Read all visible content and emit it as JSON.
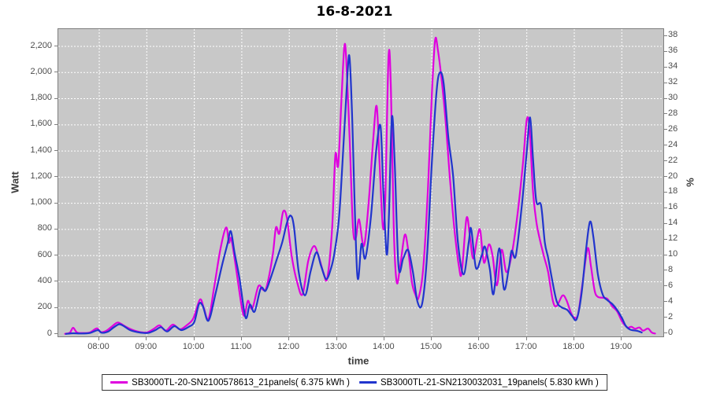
{
  "chart_data": {
    "type": "line",
    "title": "16-8-2021",
    "background": "#ffffff",
    "plot_background": "#c8c8c8",
    "grid": true,
    "grid_color": "#ffffff",
    "legend_position": "bottom",
    "x_axis": {
      "label": "time",
      "range_hours": [
        7.14,
        19.91
      ],
      "tick_values": [
        8,
        9,
        10,
        11,
        12,
        13,
        14,
        15,
        16,
        17,
        18,
        19
      ],
      "tick_labels": [
        "08:00",
        "09:00",
        "10:00",
        "11:00",
        "12:00",
        "13:00",
        "14:00",
        "15:00",
        "16:00",
        "17:00",
        "18:00",
        "19:00"
      ]
    },
    "y_axis_left": {
      "label": "Watt",
      "min": 0,
      "max": 2200,
      "step": 200,
      "tick_labels": [
        "0",
        "200",
        "400",
        "600",
        "800",
        "1,000",
        "1,200",
        "1,400",
        "1,600",
        "1,800",
        "2,000",
        "2,200"
      ]
    },
    "y_axis_right": {
      "label": "%",
      "min": 0,
      "max": 38,
      "step": 2
    },
    "series": [
      {
        "name": "SB3000TL-20-SN2100578613_21panels( 6.375 kWh )",
        "color": "#df00df",
        "points_hour_watt": [
          [
            7.28,
            2
          ],
          [
            7.38,
            10
          ],
          [
            7.45,
            48
          ],
          [
            7.53,
            12
          ],
          [
            7.65,
            8
          ],
          [
            7.8,
            12
          ],
          [
            7.95,
            44
          ],
          [
            8.03,
            15
          ],
          [
            8.15,
            25
          ],
          [
            8.28,
            62
          ],
          [
            8.38,
            88
          ],
          [
            8.46,
            78
          ],
          [
            8.55,
            58
          ],
          [
            8.68,
            34
          ],
          [
            8.8,
            20
          ],
          [
            8.92,
            12
          ],
          [
            9.02,
            14
          ],
          [
            9.15,
            40
          ],
          [
            9.27,
            66
          ],
          [
            9.4,
            26
          ],
          [
            9.55,
            72
          ],
          [
            9.7,
            36
          ],
          [
            9.85,
            70
          ],
          [
            9.98,
            120
          ],
          [
            10.12,
            264
          ],
          [
            10.2,
            200
          ],
          [
            10.3,
            115
          ],
          [
            10.42,
            360
          ],
          [
            10.55,
            650
          ],
          [
            10.67,
            815
          ],
          [
            10.73,
            700
          ],
          [
            10.78,
            728
          ],
          [
            10.88,
            500
          ],
          [
            11.0,
            205
          ],
          [
            11.06,
            142
          ],
          [
            11.13,
            254
          ],
          [
            11.22,
            195
          ],
          [
            11.35,
            366
          ],
          [
            11.45,
            338
          ],
          [
            11.52,
            358
          ],
          [
            11.65,
            600
          ],
          [
            11.72,
            815
          ],
          [
            11.79,
            768
          ],
          [
            11.87,
            936
          ],
          [
            11.95,
            888
          ],
          [
            12.05,
            600
          ],
          [
            12.17,
            390
          ],
          [
            12.28,
            305
          ],
          [
            12.4,
            560
          ],
          [
            12.52,
            673
          ],
          [
            12.62,
            592
          ],
          [
            12.72,
            470
          ],
          [
            12.8,
            428
          ],
          [
            12.9,
            800
          ],
          [
            12.97,
            1370
          ],
          [
            13.03,
            1290
          ],
          [
            13.1,
            1800
          ],
          [
            13.16,
            2200
          ],
          [
            13.2,
            2090
          ],
          [
            13.27,
            1500
          ],
          [
            13.34,
            820
          ],
          [
            13.4,
            733
          ],
          [
            13.47,
            877
          ],
          [
            13.57,
            673
          ],
          [
            13.67,
            1000
          ],
          [
            13.77,
            1500
          ],
          [
            13.84,
            1742
          ],
          [
            13.9,
            1310
          ],
          [
            13.97,
            820
          ],
          [
            14.02,
            1020
          ],
          [
            14.09,
            2120
          ],
          [
            14.14,
            1880
          ],
          [
            14.2,
            800
          ],
          [
            14.26,
            400
          ],
          [
            14.33,
            505
          ],
          [
            14.43,
            757
          ],
          [
            14.5,
            650
          ],
          [
            14.58,
            400
          ],
          [
            14.65,
            306
          ],
          [
            14.72,
            276
          ],
          [
            14.82,
            500
          ],
          [
            14.92,
            1120
          ],
          [
            15.0,
            1820
          ],
          [
            15.07,
            2246
          ],
          [
            15.13,
            2170
          ],
          [
            15.22,
            1900
          ],
          [
            15.3,
            1590
          ],
          [
            15.38,
            1200
          ],
          [
            15.48,
            790
          ],
          [
            15.57,
            520
          ],
          [
            15.63,
            470
          ],
          [
            15.73,
            884
          ],
          [
            15.8,
            760
          ],
          [
            15.87,
            577
          ],
          [
            15.96,
            740
          ],
          [
            16.02,
            793
          ],
          [
            16.1,
            546
          ],
          [
            16.2,
            685
          ],
          [
            16.28,
            598
          ],
          [
            16.37,
            372
          ],
          [
            16.47,
            643
          ],
          [
            16.57,
            474
          ],
          [
            16.68,
            602
          ],
          [
            16.8,
            900
          ],
          [
            16.92,
            1310
          ],
          [
            17.0,
            1641
          ],
          [
            17.06,
            1560
          ],
          [
            17.13,
            1100
          ],
          [
            17.2,
            860
          ],
          [
            17.28,
            715
          ],
          [
            17.37,
            583
          ],
          [
            17.45,
            474
          ],
          [
            17.55,
            252
          ],
          [
            17.63,
            215
          ],
          [
            17.75,
            294
          ],
          [
            17.83,
            264
          ],
          [
            17.93,
            162
          ],
          [
            18.0,
            126
          ],
          [
            18.08,
            152
          ],
          [
            18.17,
            380
          ],
          [
            18.28,
            655
          ],
          [
            18.35,
            520
          ],
          [
            18.43,
            330
          ],
          [
            18.5,
            284
          ],
          [
            18.6,
            278
          ],
          [
            18.7,
            268
          ],
          [
            18.8,
            212
          ],
          [
            18.9,
            174
          ],
          [
            19.0,
            100
          ],
          [
            19.07,
            66
          ],
          [
            19.13,
            48
          ],
          [
            19.2,
            56
          ],
          [
            19.28,
            40
          ],
          [
            19.37,
            50
          ],
          [
            19.45,
            26
          ],
          [
            19.55,
            42
          ],
          [
            19.63,
            12
          ],
          [
            19.7,
            4
          ]
        ]
      },
      {
        "name": "SB3000TL-21-SN2130032031_19panels( 5.830 kWh )",
        "color": "#2135cd",
        "points_hour_watt": [
          [
            7.3,
            1
          ],
          [
            7.45,
            6
          ],
          [
            7.6,
            4
          ],
          [
            7.8,
            8
          ],
          [
            7.97,
            30
          ],
          [
            8.05,
            10
          ],
          [
            8.18,
            18
          ],
          [
            8.3,
            50
          ],
          [
            8.42,
            75
          ],
          [
            8.52,
            60
          ],
          [
            8.65,
            30
          ],
          [
            8.8,
            15
          ],
          [
            8.95,
            8
          ],
          [
            9.05,
            10
          ],
          [
            9.18,
            30
          ],
          [
            9.3,
            52
          ],
          [
            9.43,
            20
          ],
          [
            9.58,
            60
          ],
          [
            9.73,
            30
          ],
          [
            9.88,
            55
          ],
          [
            10.0,
            92
          ],
          [
            10.1,
            230
          ],
          [
            10.18,
            214
          ],
          [
            10.3,
            102
          ],
          [
            10.45,
            312
          ],
          [
            10.58,
            520
          ],
          [
            10.7,
            690
          ],
          [
            10.77,
            786
          ],
          [
            10.85,
            618
          ],
          [
            10.95,
            430
          ],
          [
            11.08,
            126
          ],
          [
            11.17,
            225
          ],
          [
            11.27,
            172
          ],
          [
            11.4,
            350
          ],
          [
            11.5,
            330
          ],
          [
            11.6,
            420
          ],
          [
            11.72,
            552
          ],
          [
            11.85,
            700
          ],
          [
            11.95,
            850
          ],
          [
            12.03,
            906
          ],
          [
            12.1,
            818
          ],
          [
            12.2,
            470
          ],
          [
            12.33,
            296
          ],
          [
            12.45,
            480
          ],
          [
            12.57,
            625
          ],
          [
            12.67,
            520
          ],
          [
            12.78,
            420
          ],
          [
            12.88,
            505
          ],
          [
            12.95,
            620
          ],
          [
            13.05,
            900
          ],
          [
            13.15,
            1500
          ],
          [
            13.23,
            2020
          ],
          [
            13.27,
            2110
          ],
          [
            13.32,
            1700
          ],
          [
            13.43,
            463
          ],
          [
            13.52,
            690
          ],
          [
            13.6,
            580
          ],
          [
            13.72,
            900
          ],
          [
            13.83,
            1400
          ],
          [
            13.92,
            1590
          ],
          [
            13.98,
            1100
          ],
          [
            14.05,
            610
          ],
          [
            14.1,
            920
          ],
          [
            14.16,
            1658
          ],
          [
            14.22,
            1300
          ],
          [
            14.3,
            516
          ],
          [
            14.4,
            580
          ],
          [
            14.5,
            643
          ],
          [
            14.6,
            480
          ],
          [
            14.7,
            246
          ],
          [
            14.8,
            236
          ],
          [
            14.9,
            600
          ],
          [
            15.0,
            1300
          ],
          [
            15.1,
            1850
          ],
          [
            15.17,
            2000
          ],
          [
            15.25,
            1915
          ],
          [
            15.35,
            1500
          ],
          [
            15.45,
            1207
          ],
          [
            15.55,
            700
          ],
          [
            15.67,
            456
          ],
          [
            15.78,
            705
          ],
          [
            15.83,
            805
          ],
          [
            15.93,
            505
          ],
          [
            16.05,
            600
          ],
          [
            16.12,
            667
          ],
          [
            16.22,
            500
          ],
          [
            16.3,
            306
          ],
          [
            16.42,
            655
          ],
          [
            16.52,
            342
          ],
          [
            16.62,
            500
          ],
          [
            16.68,
            637
          ],
          [
            16.77,
            600
          ],
          [
            16.9,
            1000
          ],
          [
            17.0,
            1400
          ],
          [
            17.07,
            1656
          ],
          [
            17.13,
            1350
          ],
          [
            17.2,
            1015
          ],
          [
            17.3,
            985
          ],
          [
            17.38,
            700
          ],
          [
            17.45,
            583
          ],
          [
            17.53,
            420
          ],
          [
            17.63,
            250
          ],
          [
            17.73,
            205
          ],
          [
            17.85,
            185
          ],
          [
            17.95,
            140
          ],
          [
            18.05,
            114
          ],
          [
            18.15,
            300
          ],
          [
            18.25,
            655
          ],
          [
            18.33,
            859
          ],
          [
            18.4,
            748
          ],
          [
            18.5,
            450
          ],
          [
            18.6,
            300
          ],
          [
            18.7,
            258
          ],
          [
            18.8,
            230
          ],
          [
            18.9,
            185
          ],
          [
            19.0,
            125
          ],
          [
            19.08,
            65
          ],
          [
            19.17,
            35
          ],
          [
            19.25,
            28
          ],
          [
            19.33,
            24
          ],
          [
            19.42,
            12
          ]
        ]
      }
    ]
  }
}
